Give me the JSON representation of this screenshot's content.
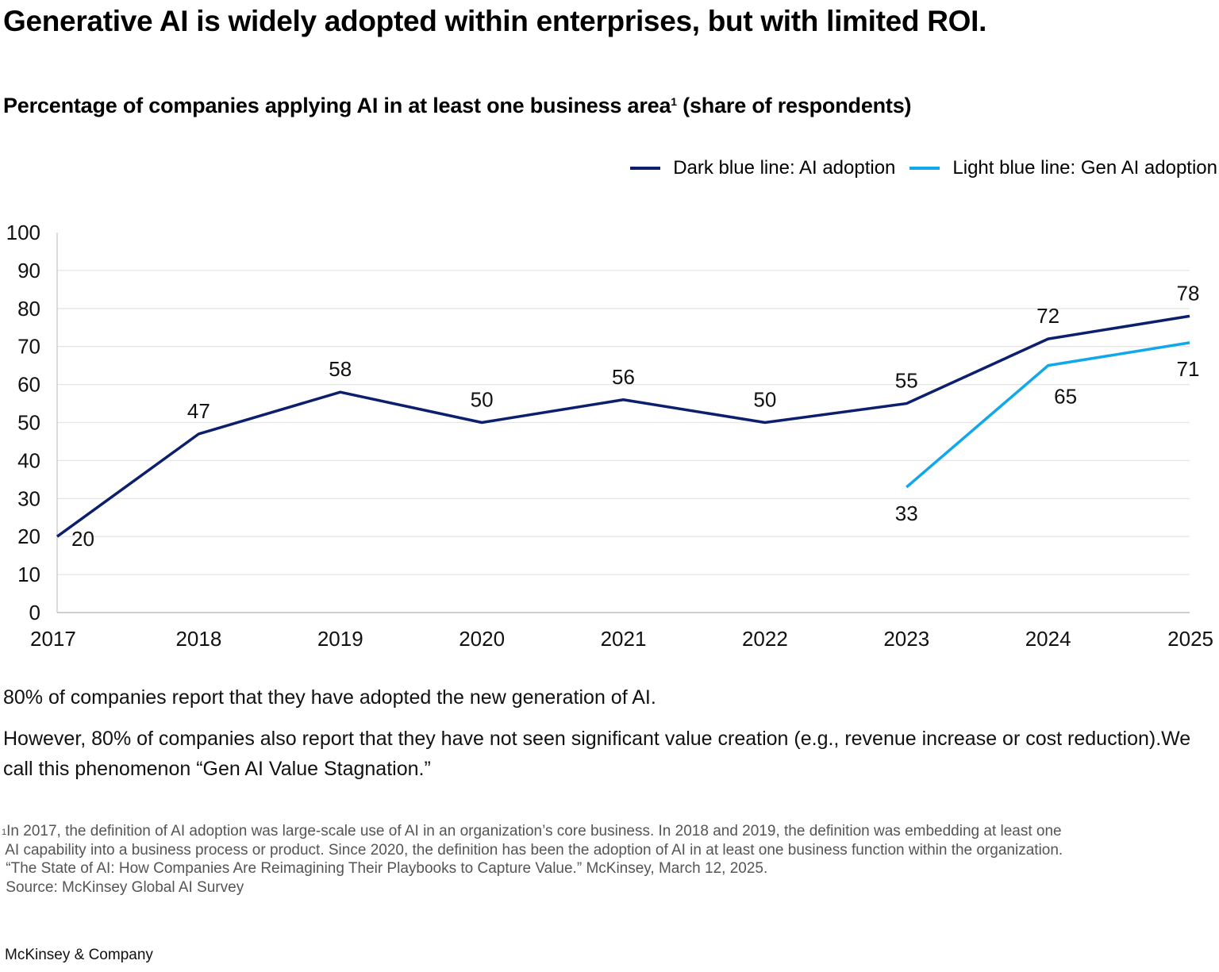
{
  "title": "Generative AI is widely adopted within enterprises, but with limited ROI.",
  "subtitle": {
    "text": "Percentage of companies applying AI in at least one business area",
    "footnote_mark": "1",
    "suffix": " (share of respondents)"
  },
  "chart_data": {
    "type": "line",
    "title": "Percentage of companies applying AI in at least one business area (share of respondents)",
    "xlabel": "",
    "ylabel": "",
    "x": [
      "2017",
      "2018",
      "2019",
      "2020",
      "2021",
      "2022",
      "2023",
      "2024",
      "2025"
    ],
    "ylim": [
      0,
      100
    ],
    "yticks": [
      0,
      10,
      20,
      30,
      40,
      50,
      60,
      70,
      80,
      90,
      100
    ],
    "grid": true,
    "legend_position": "top-right",
    "series": [
      {
        "name": "Dark blue line: AI adoption",
        "color": "#0b1f6e",
        "values": [
          20,
          47,
          58,
          50,
          56,
          50,
          55,
          72,
          78
        ],
        "label_positions": [
          "right",
          "above",
          "above",
          "above",
          "above",
          "above",
          "above",
          "above",
          "above"
        ]
      },
      {
        "name": "Light blue line: Gen AI adoption",
        "color": "#10a8ea",
        "values": [
          null,
          null,
          null,
          null,
          null,
          null,
          33,
          65,
          71
        ],
        "label_positions": [
          null,
          null,
          null,
          null,
          null,
          null,
          "below",
          "below-right",
          "below"
        ]
      }
    ]
  },
  "body": {
    "paragraph1": "80% of companies report that they have adopted the new generation of AI.",
    "paragraph2": "However, 80% of companies also report that they have not seen significant value creation (e.g., revenue increase or cost reduction).We call this phenomenon “Gen AI Value Stagnation.”"
  },
  "footnotes": {
    "mark": "1",
    "line1": "In 2017, the definition of AI adoption was large-scale use of AI in an organization’s core business. In 2018 and 2019, the definition was embedding at least one",
    "line2": " AI capability into a business process or product. Since 2020, the definition has been the adoption of AI in at least one business function within the organization.",
    "line3": " “The State of AI: How Companies Are Reimagining Their Playbooks to Capture Value.” McKinsey, March 12, 2025.",
    "line4": " Source: McKinsey Global AI Survey"
  },
  "brand": "McKinsey & Company"
}
